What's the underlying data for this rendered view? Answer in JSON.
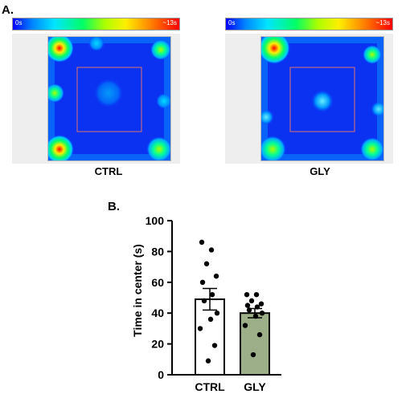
{
  "panelA": {
    "label": "A.",
    "colorbar": {
      "min_label": "0s",
      "max_label": "~13s"
    },
    "maps": [
      {
        "condition": "CTRL"
      },
      {
        "condition": "GLY"
      }
    ]
  },
  "panelB": {
    "label": "B."
  },
  "chart_data": {
    "type": "bar",
    "categories": [
      "CTRL",
      "GLY"
    ],
    "values": [
      49,
      40
    ],
    "sem": [
      7,
      3
    ],
    "points": [
      [
        86,
        81,
        72,
        64,
        60,
        52,
        48,
        40,
        36,
        30,
        19,
        9
      ],
      [
        52,
        52,
        48,
        46,
        45,
        44,
        42,
        40,
        38,
        32,
        26,
        13
      ]
    ],
    "bar_colors": [
      "#ffffff",
      "#9caf88"
    ],
    "ylabel": "Time in center (s)",
    "ylim": [
      0,
      100
    ],
    "yticks": [
      0,
      20,
      40,
      60,
      80,
      100
    ]
  }
}
